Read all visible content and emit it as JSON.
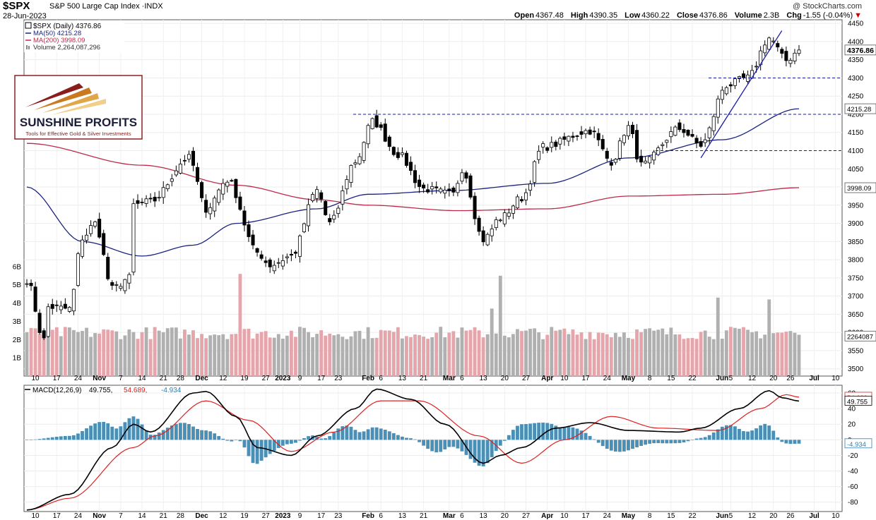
{
  "header": {
    "symbol": "$SPX",
    "name": "S&P 500 Large Cap Index",
    "exchange": "INDX",
    "name_full": "S&P 500 Large Cap Index ·INDX",
    "date": "28-Jun-2023",
    "watermark": "@ StockCharts.com",
    "open_label": "Open",
    "open": "4367.48",
    "high_label": "High",
    "high": "4390.35",
    "low_label": "Low",
    "low": "4360.22",
    "close_label": "Close",
    "close": "4376.86",
    "volume_label": "Volume",
    "volume": "2.3B",
    "chg_label": "Chg",
    "chg": "-1.55 (-0.04%)",
    "chg_arrow": "▼"
  },
  "legend": {
    "price": "$SPX (Daily) 4376.86",
    "ma50": "MA(50) 4215.28",
    "ma200": "MA(200) 3998.09",
    "volume": "Volume 2,264,087,296"
  },
  "macd_legend": {
    "name": "MACD(12,26,9)",
    "macd": "49.755,",
    "signal": "54.689,",
    "hist": "-4.934"
  },
  "logo": {
    "name": "SUNSHINE PROFITS",
    "tagline": "Tools for Effective Gold & Silver Investments"
  },
  "colors": {
    "up_candle": "#ffffff",
    "down_candle": "#000000",
    "ma50": "#1a237e",
    "ma200": "#c0284a",
    "volume_up": "#b0b0b0",
    "volume_down": "#e6a5ab",
    "macd_line": "#000000",
    "signal_line": "#e02020",
    "histogram": "#4a8fb5",
    "support_lines": "#1a1aa8",
    "trendline": "#1a1aa8"
  },
  "chart_data": [
    {
      "type": "candlestick",
      "title": "$SPX (Daily)",
      "y_ticks": [
        3500,
        3550,
        3600,
        3650,
        3700,
        3750,
        3800,
        3850,
        3900,
        3950,
        4000,
        4050,
        4100,
        4150,
        4200,
        4250,
        4300,
        4350,
        4400,
        4450
      ],
      "ylim": [
        3480,
        4460
      ],
      "x_tick_labels": [
        "10",
        "17",
        "24",
        "Nov",
        "7",
        "14",
        "21",
        "28",
        "Dec",
        "12",
        "19",
        "27",
        "2023",
        "9",
        "17",
        "23",
        "Feb",
        "6",
        "13",
        "21",
        "Mar",
        "6",
        "13",
        "20",
        "27",
        "Apr",
        "10",
        "17",
        "24",
        "May",
        "8",
        "15",
        "22",
        "Jun",
        "5",
        "12",
        "20",
        "26",
        "Jul",
        "10"
      ],
      "x_range": [
        "2022-10-06",
        "2023-06-28"
      ],
      "last_value_labels": [
        "4376.86",
        "4215.28",
        "3998.09",
        "2264087"
      ],
      "horizontal_levels": [
        4300,
        4200,
        4100
      ],
      "trendline": {
        "from": [
          "2023-05-24",
          4080
        ],
        "to": [
          "2023-06-20",
          4430
        ]
      },
      "anchor_closes": [
        [
          "2022-10-06",
          3745
        ],
        [
          "2022-10-12",
          3580
        ],
        [
          "2022-10-13",
          3670
        ],
        [
          "2022-10-20",
          3665
        ],
        [
          "2022-10-25",
          3860
        ],
        [
          "2022-10-28",
          3900
        ],
        [
          "2022-11-03",
          3720
        ],
        [
          "2022-11-09",
          3750
        ],
        [
          "2022-11-10",
          3950
        ],
        [
          "2022-11-16",
          3960
        ],
        [
          "2022-11-30",
          4080
        ],
        [
          "2022-12-06",
          3940
        ],
        [
          "2022-12-13",
          4020
        ],
        [
          "2022-12-22",
          3820
        ],
        [
          "2022-12-28",
          3785
        ],
        [
          "2023-01-05",
          3810
        ],
        [
          "2023-01-13",
          3990
        ],
        [
          "2023-01-19",
          3900
        ],
        [
          "2023-01-27",
          4070
        ],
        [
          "2023-02-02",
          4180
        ],
        [
          "2023-02-10",
          4090
        ],
        [
          "2023-02-21",
          3995
        ],
        [
          "2023-03-02",
          3980
        ],
        [
          "2023-03-06",
          4050
        ],
        [
          "2023-03-13",
          3855
        ],
        [
          "2023-03-17",
          3915
        ],
        [
          "2023-03-24",
          3970
        ],
        [
          "2023-03-31",
          4110
        ],
        [
          "2023-04-18",
          4155
        ],
        [
          "2023-04-25",
          4070
        ],
        [
          "2023-05-01",
          4165
        ],
        [
          "2023-05-04",
          4060
        ],
        [
          "2023-05-17",
          4160
        ],
        [
          "2023-05-24",
          4115
        ],
        [
          "2023-06-02",
          4280
        ],
        [
          "2023-06-09",
          4300
        ],
        [
          "2023-06-16",
          4410
        ],
        [
          "2023-06-23",
          4348
        ],
        [
          "2023-06-28",
          4376.86
        ]
      ],
      "ma50_anchors": [
        [
          "2022-10-06",
          4000
        ],
        [
          "2022-10-25",
          3850
        ],
        [
          "2022-11-14",
          3810
        ],
        [
          "2022-12-01",
          3840
        ],
        [
          "2022-12-15",
          3900
        ],
        [
          "2023-01-13",
          3940
        ],
        [
          "2023-02-01",
          3980
        ],
        [
          "2023-03-01",
          3990
        ],
        [
          "2023-04-01",
          4010
        ],
        [
          "2023-05-01",
          4080
        ],
        [
          "2023-06-01",
          4130
        ],
        [
          "2023-06-28",
          4215.28
        ]
      ],
      "ma200_anchors": [
        [
          "2022-10-06",
          4120
        ],
        [
          "2022-11-14",
          4060
        ],
        [
          "2022-12-15",
          4005
        ],
        [
          "2023-01-13",
          3965
        ],
        [
          "2023-02-01",
          3950
        ],
        [
          "2023-03-03",
          3935
        ],
        [
          "2023-04-01",
          3940
        ],
        [
          "2023-05-01",
          3975
        ],
        [
          "2023-06-01",
          3980
        ],
        [
          "2023-06-28",
          3998.09
        ]
      ],
      "volume_axis": {
        "ticks": [
          "1B",
          "2B",
          "3B",
          "4B",
          "5B",
          "6B"
        ],
        "range_billions": [
          0,
          7
        ]
      },
      "volume_typical_billions": 2.3,
      "volume_peaks": [
        [
          "2022-12-16",
          5.6
        ],
        [
          "2023-03-17",
          5.5
        ],
        [
          "2023-03-15",
          3.7
        ],
        [
          "2023-05-31",
          4.3
        ],
        [
          "2023-06-16",
          4.2
        ]
      ]
    },
    {
      "type": "line",
      "title": "MACD(12,26,9)",
      "y_ticks": [
        -80,
        -60,
        -40,
        -20,
        0,
        20,
        40,
        60
      ],
      "ylim": [
        -92,
        70
      ],
      "series": [
        {
          "name": "MACD",
          "last": 49.755,
          "anchors": [
            [
              "2022-10-06",
              -90
            ],
            [
              "2022-10-20",
              -70
            ],
            [
              "2022-11-03",
              -10
            ],
            [
              "2022-11-10",
              20
            ],
            [
              "2022-11-16",
              10
            ],
            [
              "2022-12-01",
              60
            ],
            [
              "2022-12-06",
              62
            ],
            [
              "2022-12-15",
              30
            ],
            [
              "2022-12-22",
              -10
            ],
            [
              "2023-01-05",
              -20
            ],
            [
              "2023-01-13",
              5
            ],
            [
              "2023-01-27",
              40
            ],
            [
              "2023-02-03",
              65
            ],
            [
              "2023-02-15",
              52
            ],
            [
              "2023-02-28",
              20
            ],
            [
              "2023-03-13",
              -30
            ],
            [
              "2023-03-17",
              -20
            ],
            [
              "2023-03-24",
              -10
            ],
            [
              "2023-04-05",
              15
            ],
            [
              "2023-04-18",
              22
            ],
            [
              "2023-05-01",
              12
            ],
            [
              "2023-05-17",
              10
            ],
            [
              "2023-05-24",
              15
            ],
            [
              "2023-06-07",
              40
            ],
            [
              "2023-06-16",
              63
            ],
            [
              "2023-06-22",
              54
            ],
            [
              "2023-06-28",
              49.755
            ]
          ]
        },
        {
          "name": "Signal",
          "last": 54.689,
          "anchors": [
            [
              "2022-10-06",
              -90
            ],
            [
              "2022-10-20",
              -75
            ],
            [
              "2022-11-10",
              -10
            ],
            [
              "2022-11-17",
              5
            ],
            [
              "2022-12-06",
              50
            ],
            [
              "2022-12-20",
              25
            ],
            [
              "2023-01-05",
              -15
            ],
            [
              "2023-01-20",
              10
            ],
            [
              "2023-02-06",
              50
            ],
            [
              "2023-02-17",
              50
            ],
            [
              "2023-03-10",
              5
            ],
            [
              "2023-03-24",
              -30
            ],
            [
              "2023-04-10",
              0
            ],
            [
              "2023-04-25",
              30
            ],
            [
              "2023-05-10",
              15
            ],
            [
              "2023-05-31",
              12
            ],
            [
              "2023-06-14",
              40
            ],
            [
              "2023-06-23",
              58
            ],
            [
              "2023-06-28",
              54.689
            ]
          ]
        },
        {
          "name": "Histogram",
          "type": "bar",
          "last": -4.934
        }
      ]
    }
  ]
}
